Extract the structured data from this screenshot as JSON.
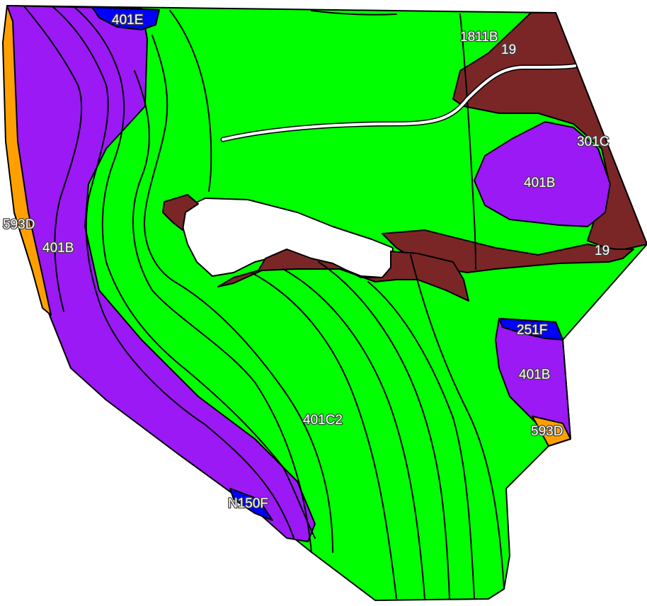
{
  "colors": {
    "401C2": "#00ff00",
    "401B": "#9b19f5",
    "19": "#7b2626",
    "593D": "#ffa000",
    "401E": "#0000ff",
    "251F": "#0000ff",
    "N150F": "#0000ff",
    "301C": "#7b2626",
    "1811B": "#7b2626",
    "outline": "#000000",
    "road": "#ffffff"
  },
  "labels": {
    "l_401E": "401E",
    "l_1811B": "1811B",
    "l_19_top": "19",
    "l_301C": "301C",
    "l_401B_east": "401B",
    "l_593D_west": "593D",
    "l_401B_west": "401B",
    "l_19_right": "19",
    "l_251F": "251F",
    "l_401B_se": "401B",
    "l_401C2": "401C2",
    "l_593D_se": "593D",
    "l_N150F": "N150F"
  }
}
